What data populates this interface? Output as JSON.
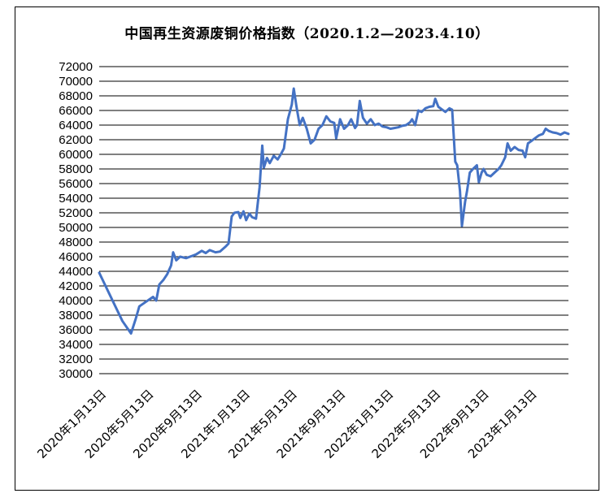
{
  "chart_data": {
    "type": "line",
    "title": "中国再生资源废铜价格指数（2020.1.2—2023.4.10）",
    "xlabel": "",
    "ylabel": "",
    "ylim": [
      30000,
      72000
    ],
    "y_ticks": [
      30000,
      32000,
      34000,
      36000,
      38000,
      40000,
      42000,
      44000,
      46000,
      48000,
      50000,
      52000,
      54000,
      56000,
      58000,
      60000,
      62000,
      64000,
      66000,
      68000,
      70000,
      72000
    ],
    "y_tick_labels": [
      "30000",
      "32000",
      "34000",
      "36000",
      "38000",
      "40000",
      "42000",
      "44000",
      "46000",
      "48000",
      "50000",
      "52000",
      "54000",
      "56000",
      "58000",
      "60000",
      "62000",
      "64000",
      "66000",
      "68000",
      "70000",
      "72000"
    ],
    "x_tick_labels": [
      "2020年1月13日",
      "2020年5月13日",
      "2020年9月13日",
      "2021年1月13日",
      "2021年5月13日",
      "2021年9月13日",
      "2022年1月13日",
      "2022年5月13日",
      "2022年9月13日",
      "2023年1月13日"
    ],
    "x_ticks": [
      "2020-01-13",
      "2020-05-13",
      "2020-09-13",
      "2021-01-13",
      "2021-05-13",
      "2021-09-13",
      "2022-01-13",
      "2022-05-13",
      "2022-09-13",
      "2023-01-13"
    ],
    "x_range": [
      "2020-01-02",
      "2023-04-10"
    ],
    "grid": "horizontal",
    "line_color": "#4472C4",
    "series": [
      {
        "points": [
          [
            "2020-01-02",
            43800
          ],
          [
            "2020-03-01",
            37200
          ],
          [
            "2020-03-23",
            35500
          ],
          [
            "2020-04-04",
            37500
          ],
          [
            "2020-04-13",
            39200
          ],
          [
            "2020-04-29",
            39800
          ],
          [
            "2020-05-18",
            40500
          ],
          [
            "2020-05-26",
            40000
          ],
          [
            "2020-06-03",
            42200
          ],
          [
            "2020-06-13",
            42800
          ],
          [
            "2020-06-23",
            43600
          ],
          [
            "2020-07-03",
            44800
          ],
          [
            "2020-07-08",
            46600
          ],
          [
            "2020-07-16",
            45500
          ],
          [
            "2020-07-26",
            46000
          ],
          [
            "2020-08-10",
            45800
          ],
          [
            "2020-08-25",
            46100
          ],
          [
            "2020-09-04",
            46300
          ],
          [
            "2020-09-19",
            46800
          ],
          [
            "2020-09-29",
            46500
          ],
          [
            "2020-10-09",
            46900
          ],
          [
            "2020-10-24",
            46600
          ],
          [
            "2020-11-04",
            46700
          ],
          [
            "2020-11-19",
            47400
          ],
          [
            "2020-11-26",
            47800
          ],
          [
            "2020-12-04",
            51500
          ],
          [
            "2020-12-11",
            52000
          ],
          [
            "2020-12-21",
            52100
          ],
          [
            "2020-12-26",
            51300
          ],
          [
            "2021-01-03",
            52200
          ],
          [
            "2021-01-10",
            51000
          ],
          [
            "2021-01-18",
            51900
          ],
          [
            "2021-01-25",
            51400
          ],
          [
            "2021-02-04",
            51200
          ],
          [
            "2021-02-13",
            55500
          ],
          [
            "2021-02-20",
            61200
          ],
          [
            "2021-02-24",
            58200
          ],
          [
            "2021-03-04",
            59500
          ],
          [
            "2021-03-11",
            58800
          ],
          [
            "2021-03-21",
            59800
          ],
          [
            "2021-03-31",
            59300
          ],
          [
            "2021-04-08",
            60000
          ],
          [
            "2021-04-16",
            60800
          ],
          [
            "2021-04-26",
            64800
          ],
          [
            "2021-05-06",
            66800
          ],
          [
            "2021-05-11",
            69000
          ],
          [
            "2021-05-18",
            66500
          ],
          [
            "2021-05-26",
            64000
          ],
          [
            "2021-06-03",
            65000
          ],
          [
            "2021-06-13",
            63500
          ],
          [
            "2021-06-23",
            61500
          ],
          [
            "2021-07-03",
            62000
          ],
          [
            "2021-07-13",
            63500
          ],
          [
            "2021-07-23",
            64000
          ],
          [
            "2021-08-02",
            65200
          ],
          [
            "2021-08-12",
            64500
          ],
          [
            "2021-08-22",
            64300
          ],
          [
            "2021-08-27",
            62200
          ],
          [
            "2021-09-06",
            64800
          ],
          [
            "2021-09-16",
            63500
          ],
          [
            "2021-09-26",
            64000
          ],
          [
            "2021-10-04",
            64800
          ],
          [
            "2021-10-14",
            63600
          ],
          [
            "2021-10-19",
            64000
          ],
          [
            "2021-10-26",
            67300
          ],
          [
            "2021-11-03",
            65000
          ],
          [
            "2021-11-13",
            64200
          ],
          [
            "2021-11-23",
            64800
          ],
          [
            "2021-12-03",
            64000
          ],
          [
            "2021-12-13",
            64200
          ],
          [
            "2021-12-23",
            63800
          ],
          [
            "2022-01-02",
            63700
          ],
          [
            "2022-01-12",
            63500
          ],
          [
            "2022-01-22",
            63600
          ],
          [
            "2022-02-01",
            63700
          ],
          [
            "2022-02-11",
            63900
          ],
          [
            "2022-02-21",
            64000
          ],
          [
            "2022-03-03",
            64400
          ],
          [
            "2022-03-08",
            64800
          ],
          [
            "2022-03-16",
            64000
          ],
          [
            "2022-03-24",
            66000
          ],
          [
            "2022-04-01",
            65800
          ],
          [
            "2022-04-11",
            66300
          ],
          [
            "2022-04-21",
            66500
          ],
          [
            "2022-05-01",
            66600
          ],
          [
            "2022-05-06",
            67600
          ],
          [
            "2022-05-14",
            66500
          ],
          [
            "2022-05-24",
            66100
          ],
          [
            "2022-06-01",
            65800
          ],
          [
            "2022-06-11",
            66300
          ],
          [
            "2022-06-18",
            66100
          ],
          [
            "2022-06-21",
            63500
          ],
          [
            "2022-06-26",
            59000
          ],
          [
            "2022-07-01",
            58500
          ],
          [
            "2022-07-08",
            55000
          ],
          [
            "2022-07-13",
            50200
          ],
          [
            "2022-07-21",
            53500
          ],
          [
            "2022-07-26",
            55000
          ],
          [
            "2022-08-02",
            57500
          ],
          [
            "2022-08-10",
            58000
          ],
          [
            "2022-08-20",
            58500
          ],
          [
            "2022-08-25",
            56200
          ],
          [
            "2022-09-01",
            57500
          ],
          [
            "2022-09-06",
            58000
          ],
          [
            "2022-09-14",
            57200
          ],
          [
            "2022-09-24",
            57000
          ],
          [
            "2022-10-04",
            57500
          ],
          [
            "2022-10-14",
            58000
          ],
          [
            "2022-10-21",
            58500
          ],
          [
            "2022-10-31",
            59600
          ],
          [
            "2022-11-06",
            61500
          ],
          [
            "2022-11-14",
            60500
          ],
          [
            "2022-11-24",
            61000
          ],
          [
            "2022-12-04",
            60600
          ],
          [
            "2022-12-14",
            60500
          ],
          [
            "2022-12-21",
            59600
          ],
          [
            "2022-12-28",
            61500
          ],
          [
            "2023-01-05",
            61800
          ],
          [
            "2023-01-15",
            62200
          ],
          [
            "2023-01-25",
            62600
          ],
          [
            "2023-02-04",
            62800
          ],
          [
            "2023-02-11",
            63500
          ],
          [
            "2023-02-19",
            63200
          ],
          [
            "2023-03-01",
            63000
          ],
          [
            "2023-03-11",
            62900
          ],
          [
            "2023-03-21",
            62700
          ],
          [
            "2023-03-31",
            63000
          ],
          [
            "2023-04-10",
            62800
          ]
        ]
      }
    ]
  }
}
